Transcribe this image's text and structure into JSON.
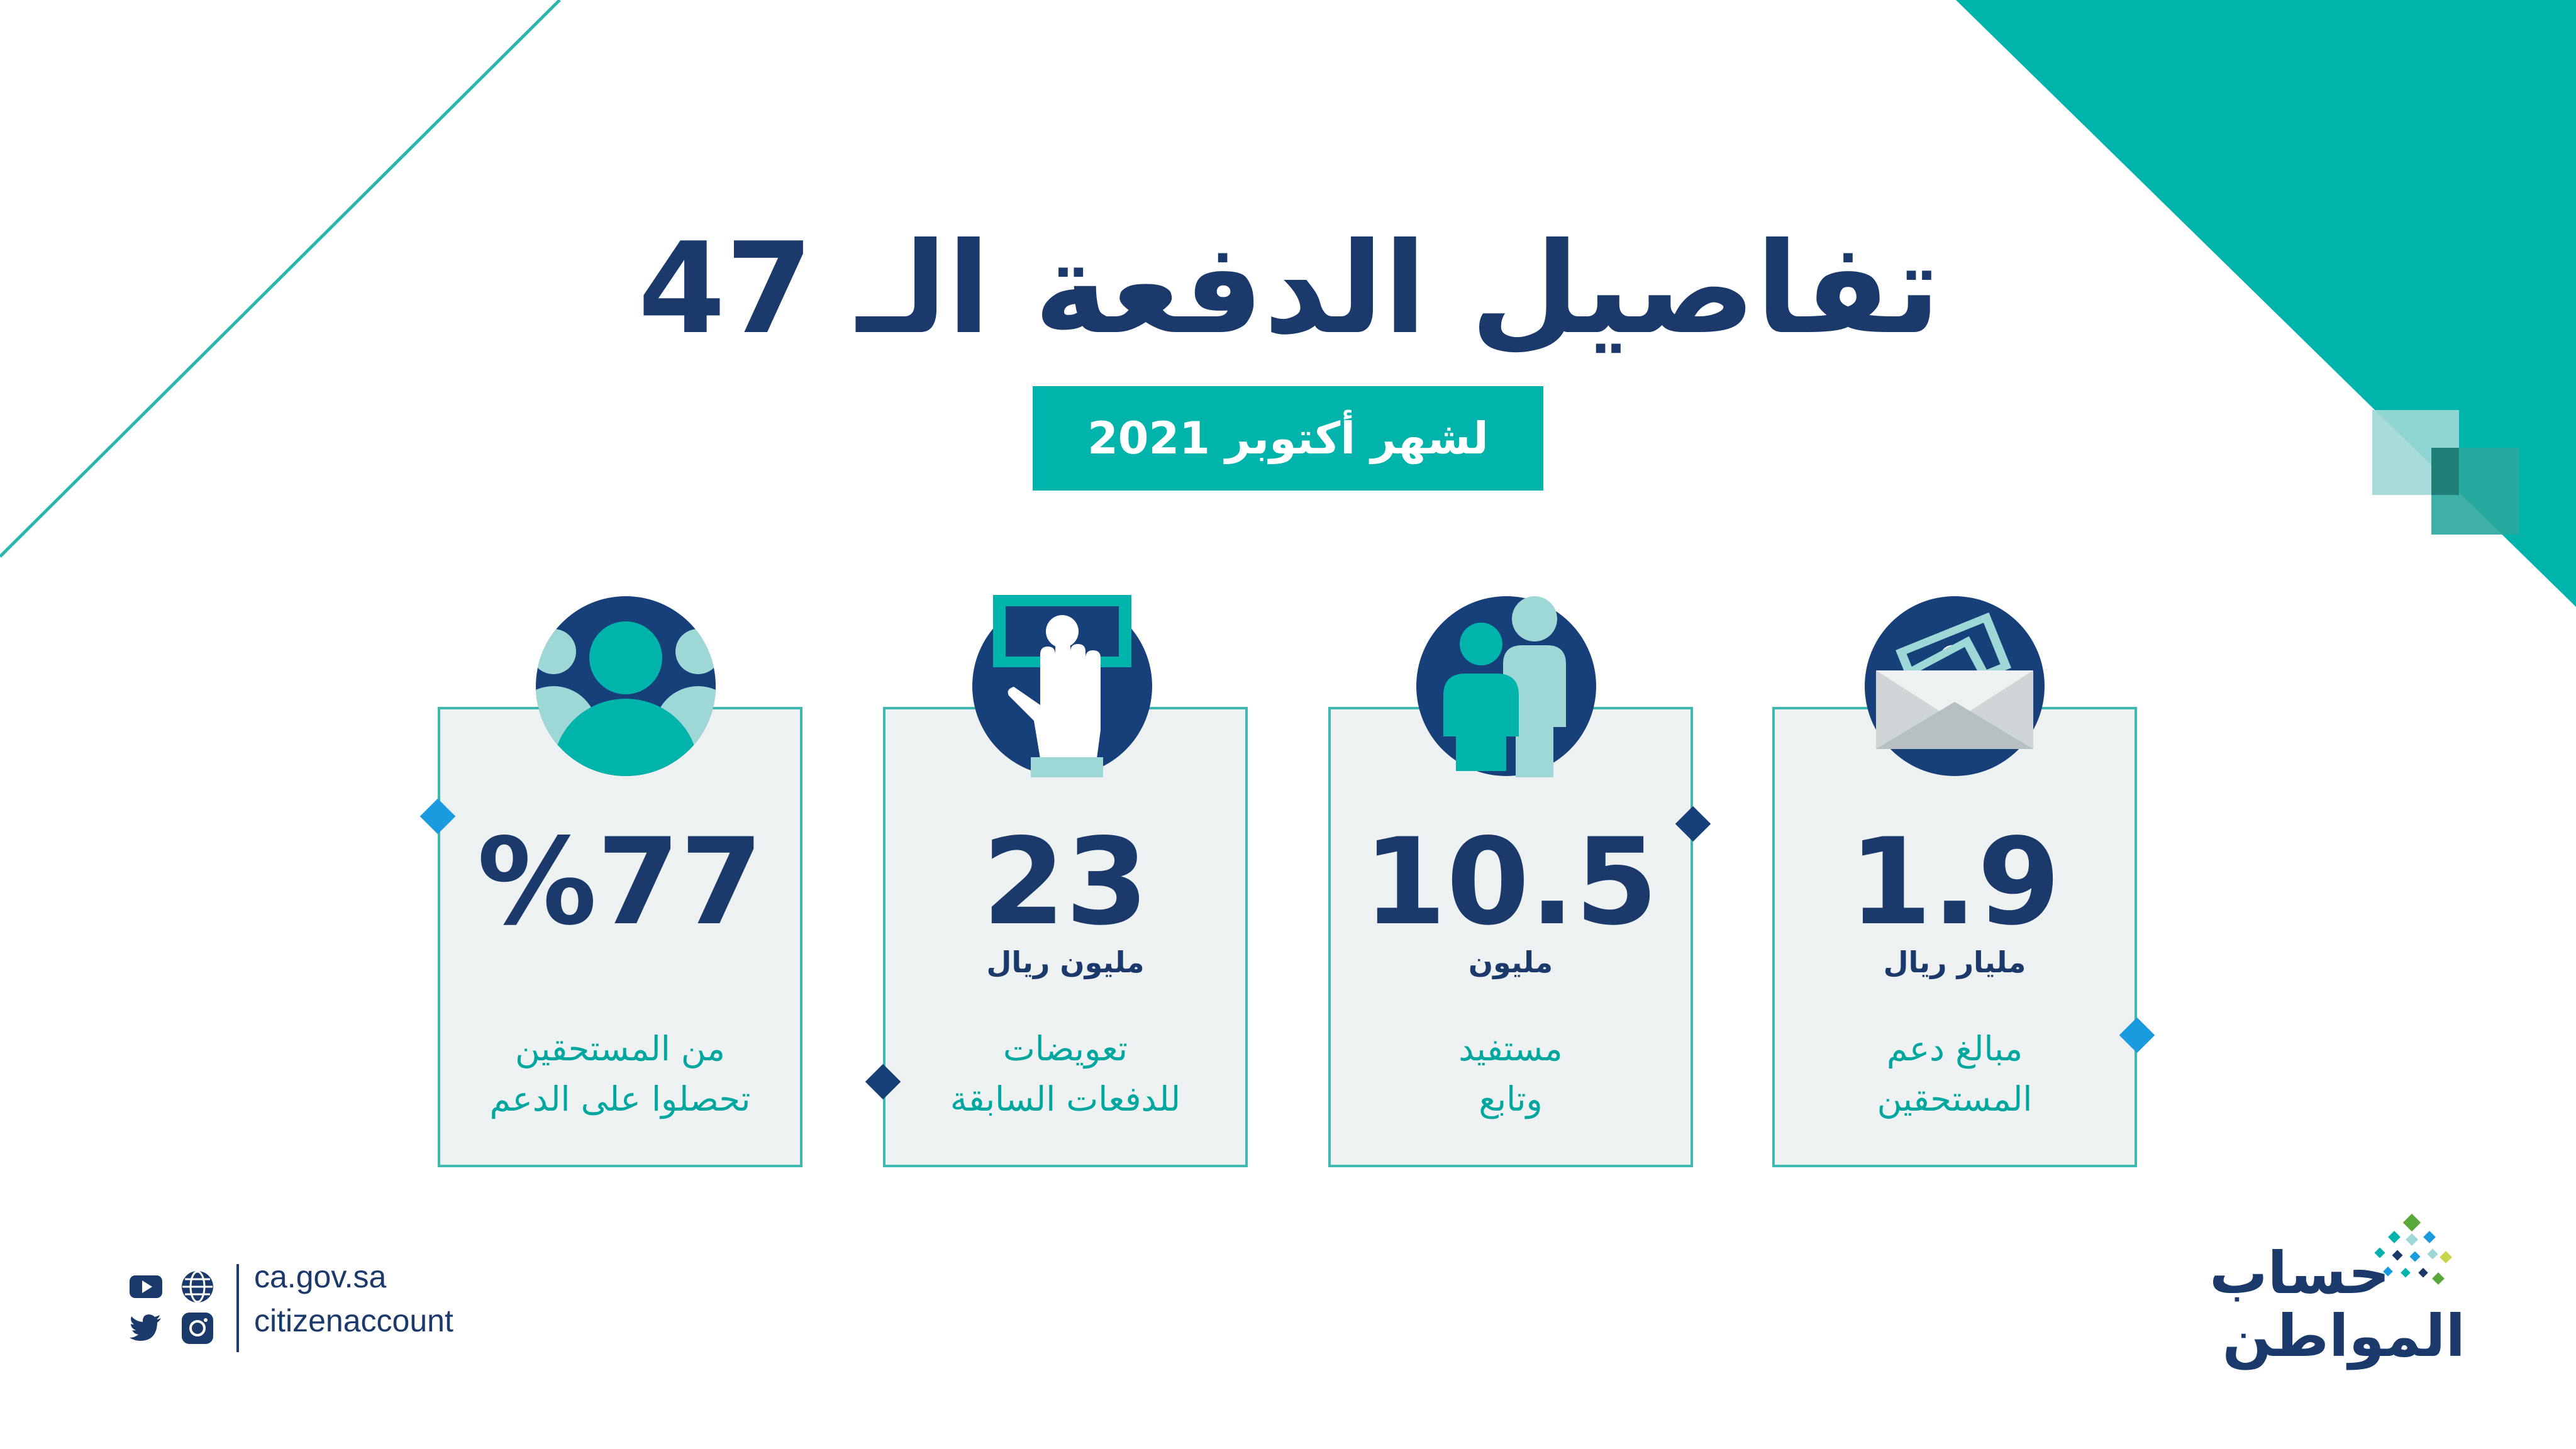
{
  "title": "تفاصيل الدفعة الـ 47",
  "subtitle": "لشهر أكتوبر 2021",
  "cards": [
    {
      "value": "1.9",
      "unit": "مليار ريال",
      "desc": [
        "مبالغ دعم",
        "المستحقين"
      ],
      "icon": "money-envelope-icon"
    },
    {
      "value": "10.5",
      "unit": "مليون",
      "desc": [
        "مستفيد",
        "وتابع"
      ],
      "icon": "people-icon"
    },
    {
      "value": "23",
      "unit": "مليون ريال",
      "desc": [
        "تعويضات",
        "للدفعات السابقة"
      ],
      "icon": "hand-cash-icon"
    },
    {
      "value": "%77",
      "unit": "",
      "desc": [
        "من المستحقين",
        "تحصلوا على الدعم"
      ],
      "icon": "group-users-icon"
    }
  ],
  "footer": {
    "website": "ca.gov.sa",
    "handle": "citizenaccount",
    "social_icons": [
      "youtube-icon",
      "globe-icon",
      "twitter-icon",
      "instagram-icon"
    ]
  },
  "logo": {
    "line1": "حساب",
    "line2": "المواطن"
  },
  "colors": {
    "navy": "#1b3a6b",
    "teal": "#00b3ab",
    "light_teal": "#9ed8d6",
    "card_bg": "#eef1f1",
    "accent_blue": "#1a9be0"
  }
}
